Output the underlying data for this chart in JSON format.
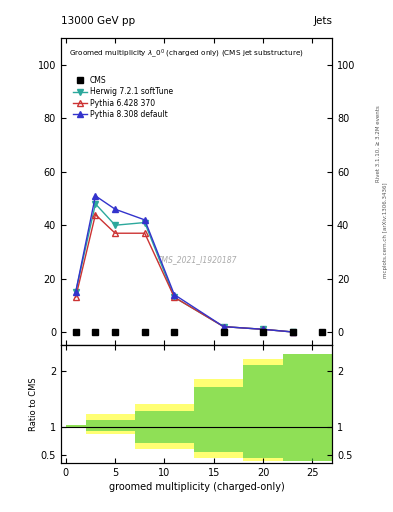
{
  "title_top": "13000 GeV pp",
  "title_right": "Jets",
  "watermark": "CMS_2021_I1920187",
  "right_label1": "Rivet 3.1.10, ≥ 3.2M events",
  "right_label2": "mcplots.cern.ch [arXiv:1306.3436]",
  "cms_x": [
    1,
    3,
    5,
    8,
    11,
    16,
    20,
    23,
    26
  ],
  "cms_y": [
    0,
    0,
    0,
    0,
    0,
    0,
    0,
    0,
    0
  ],
  "herwig_x": [
    1,
    3,
    5,
    8,
    11,
    16,
    20,
    23
  ],
  "herwig_y": [
    15,
    48,
    40,
    41,
    13,
    2,
    1,
    0
  ],
  "herwig_color": "#2ca89c",
  "pythia6_x": [
    1,
    3,
    5,
    8,
    11,
    16,
    20,
    23
  ],
  "pythia6_y": [
    13,
    44,
    37,
    37,
    13,
    2,
    1,
    0
  ],
  "pythia6_color": "#cc3333",
  "pythia8_x": [
    1,
    3,
    5,
    8,
    11,
    16,
    20,
    23
  ],
  "pythia8_y": [
    15,
    51,
    46,
    42,
    14,
    2,
    1,
    0
  ],
  "pythia8_color": "#3333cc",
  "ratio_bins": [
    {
      "xmin": 0,
      "xmax": 2,
      "ymin_g": 0.975,
      "ymax_g": 1.025,
      "ymin_y": 0.975,
      "ymax_y": 1.025
    },
    {
      "xmin": 2,
      "xmax": 7,
      "ymin_g": 0.92,
      "ymax_g": 1.12,
      "ymin_y": 0.87,
      "ymax_y": 1.22
    },
    {
      "xmin": 7,
      "xmax": 13,
      "ymin_g": 0.72,
      "ymax_g": 1.28,
      "ymin_y": 0.6,
      "ymax_y": 1.4
    },
    {
      "xmin": 13,
      "xmax": 18,
      "ymin_g": 0.55,
      "ymax_g": 1.7,
      "ymin_y": 0.45,
      "ymax_y": 1.85
    },
    {
      "xmin": 18,
      "xmax": 22,
      "ymin_g": 0.45,
      "ymax_g": 2.1,
      "ymin_y": 0.4,
      "ymax_y": 2.2
    },
    {
      "xmin": 22,
      "xmax": 28,
      "ymin_g": 0.4,
      "ymax_g": 2.3,
      "ymin_y": 0.4,
      "ymax_y": 2.3
    }
  ],
  "ylim_main": [
    -5,
    110
  ],
  "ylim_ratio": [
    0.35,
    2.45
  ],
  "xlim": [
    -0.5,
    27
  ],
  "yticks_main": [
    0,
    20,
    40,
    60,
    80,
    100
  ],
  "yticks_ratio": [
    0.5,
    1.0,
    2.0
  ],
  "green_color": "#44cc44",
  "yellow_color": "#ffff44",
  "green_alpha": 0.6,
  "yellow_alpha": 0.75,
  "cms_marker_color": "black",
  "cms_marker_style": "s",
  "cms_marker_size": 4
}
